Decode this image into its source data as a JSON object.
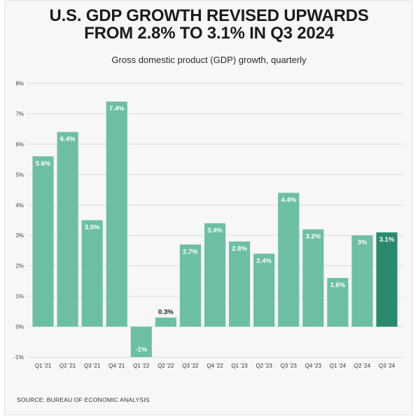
{
  "title_line1": "U.S. GDP GROWTH REVISED UPWARDS",
  "title_line2": "FROM 2.8% TO 3.1% IN Q3 2024",
  "subtitle": "Gross domestic product (GDP) growth, quarterly",
  "source": "SOURCE: BUREAU OF ECONOMIC ANALYSIS",
  "colors": {
    "bar": "#6dbfa3",
    "highlight_bar": "#2a8a6e",
    "label_on_bar": "#ffffff",
    "label_off_bar": "#1b1b1b",
    "grid": "#dcdcdc"
  },
  "chart_data": {
    "type": "bar",
    "categories": [
      "Q1 '21",
      "Q2 '21",
      "Q3 '21",
      "Q4 '21",
      "Q1 '22",
      "Q2 '22",
      "Q3 '22",
      "Q4 '22",
      "Q1 '23",
      "Q2 '23",
      "Q3 '23",
      "Q4 '23",
      "Q1 '24",
      "Q2 '24",
      "Q3 '24"
    ],
    "values": [
      5.6,
      6.4,
      3.5,
      7.4,
      -1,
      0.3,
      2.7,
      3.4,
      2.8,
      2.4,
      4.4,
      3.2,
      1.6,
      3,
      3.1
    ],
    "data_labels": [
      "5.6%",
      "6.4%",
      "3.5%",
      "7.4%",
      "-1%",
      "0.3%",
      "2.7%",
      "3.4%",
      "2.8%",
      "2.4%",
      "4.4%",
      "3.2%",
      "1.6%",
      "3%",
      "3.1%"
    ],
    "highlight_index": 14,
    "ylim": [
      -1,
      8
    ],
    "yticks": [
      8,
      7,
      6,
      5,
      4,
      3,
      2,
      1,
      0,
      -1
    ],
    "ytick_labels": [
      "8%",
      "7%",
      "6%",
      "5%",
      "4%",
      "3%",
      "2%",
      "1%",
      "0%",
      "-1%"
    ],
    "grid": true,
    "xlabel": "",
    "ylabel": ""
  }
}
